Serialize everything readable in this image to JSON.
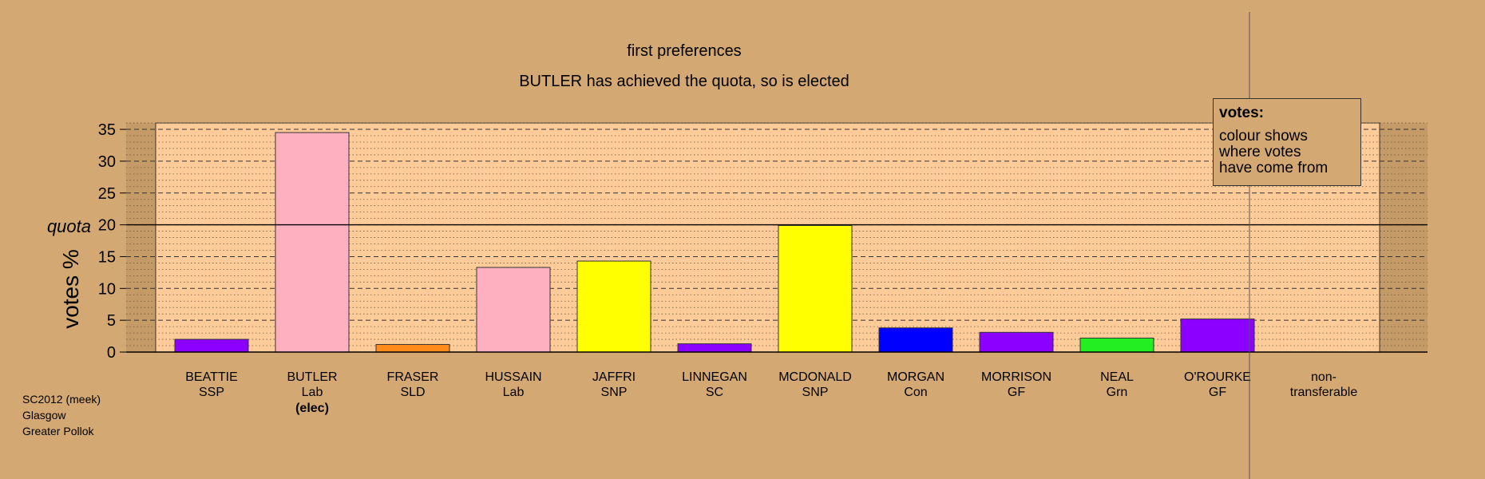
{
  "chart_data": {
    "type": "bar",
    "title": "first preferences",
    "subtitle": "BUTLER has achieved the quota, so is elected",
    "ylabel": "votes %",
    "ylim": [
      0,
      36
    ],
    "yticks": [
      0,
      5,
      10,
      15,
      20,
      25,
      30,
      35
    ],
    "quota": 20,
    "quota_label": "quota",
    "grid": "dashed major / dotted minor",
    "categories": [
      {
        "name": "BEATTIE",
        "party": "SSP",
        "value": 2.0,
        "color": "#8B00FF",
        "note": ""
      },
      {
        "name": "BUTLER",
        "party": "Lab",
        "value": 34.5,
        "color": "#FFB0C0",
        "note": "(elec)"
      },
      {
        "name": "FRASER",
        "party": "SLD",
        "value": 1.2,
        "color": "#FF8C1A",
        "note": ""
      },
      {
        "name": "HUSSAIN",
        "party": "Lab",
        "value": 13.3,
        "color": "#FFB0C0",
        "note": ""
      },
      {
        "name": "JAFFRI",
        "party": "SNP",
        "value": 14.3,
        "color": "#FFFF00",
        "note": ""
      },
      {
        "name": "LINNEGAN",
        "party": "SC",
        "value": 1.3,
        "color": "#8B00FF",
        "note": ""
      },
      {
        "name": "MCDONALD",
        "party": "SNP",
        "value": 19.9,
        "color": "#FFFF00",
        "note": ""
      },
      {
        "name": "MORGAN",
        "party": "Con",
        "value": 3.8,
        "color": "#0000FF",
        "note": ""
      },
      {
        "name": "MORRISON",
        "party": "GF",
        "value": 3.1,
        "color": "#8B00FF",
        "note": ""
      },
      {
        "name": "NEAL",
        "party": "Grn",
        "value": 2.2,
        "color": "#22EE22",
        "note": ""
      },
      {
        "name": "O'ROURKE",
        "party": "GF",
        "value": 5.2,
        "color": "#8B00FF",
        "note": ""
      }
    ],
    "nontransferable": {
      "label1": "non-",
      "label2": "transferable",
      "value": 0
    }
  },
  "legend": {
    "title": "votes:",
    "lines": [
      "colour shows",
      "where votes",
      "have come from"
    ]
  },
  "footnote": [
    "SC2012 (meek)",
    "Glasgow",
    "Greater Pollok"
  ],
  "colors": {
    "background": "#D4A872",
    "plot_band": "#FFCC99"
  }
}
